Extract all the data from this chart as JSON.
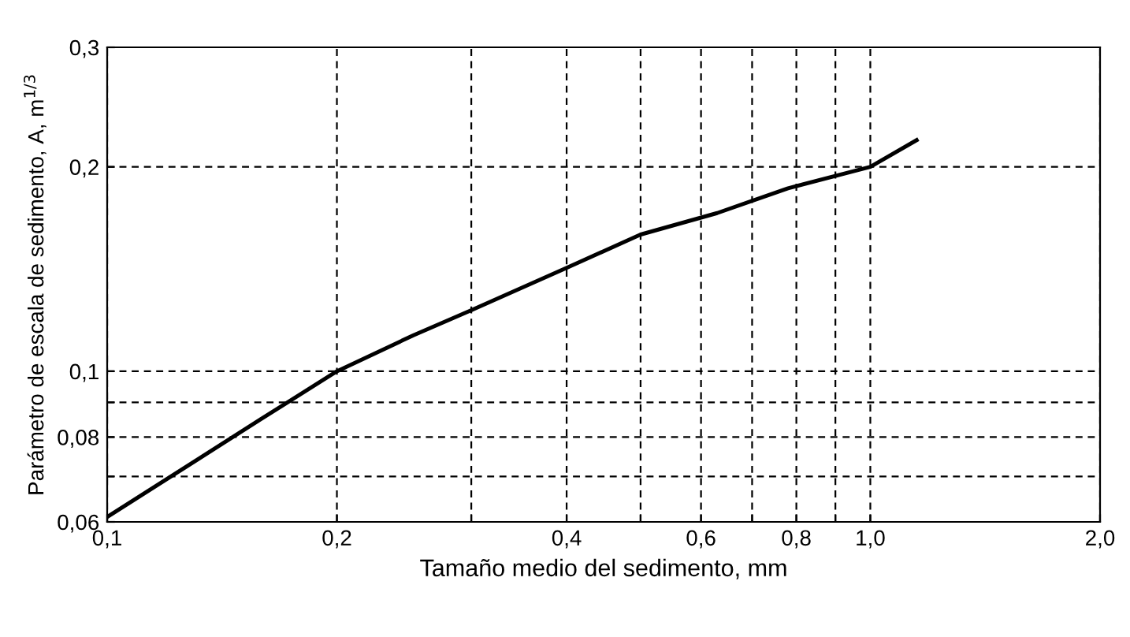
{
  "chart_data": {
    "type": "line",
    "xlabel": "Tamaño medio del sedimento, mm",
    "ylabel": "Parámetro de escala de sedimento, A, m$^{1/3}$",
    "log": "xy",
    "grid": true,
    "marker": "none",
    "line_style": "solid",
    "x": [
      0.1,
      0.159,
      0.2,
      0.252,
      0.3,
      0.4,
      0.5,
      0.63,
      0.78,
      1.0,
      1.15
    ],
    "series": [
      {
        "color": "#000000",
        "values": [
          0.061,
          0.085,
          0.1,
          0.113,
          0.123,
          0.142,
          0.159,
          0.171,
          0.186,
          0.2,
          0.219
        ]
      }
    ],
    "xlim": [
      0.1,
      2.0
    ],
    "ylim": [
      0.06,
      0.3
    ],
    "xticks": [
      {
        "value": 0.1,
        "label": "0,1"
      },
      {
        "value": 0.2,
        "label": "0,2"
      },
      {
        "value": 0.3,
        "label": null
      },
      {
        "value": 0.4,
        "label": "0,4"
      },
      {
        "value": 0.5,
        "label": null
      },
      {
        "value": 0.6,
        "label": "0,6"
      },
      {
        "value": 0.7,
        "label": null
      },
      {
        "value": 0.8,
        "label": "0,8"
      },
      {
        "value": 0.9,
        "label": null
      },
      {
        "value": 1.0,
        "label": "1,0"
      },
      {
        "value": 2.0,
        "label": "2,0"
      }
    ],
    "yticks": [
      {
        "value": 0.06,
        "label": "0,06"
      },
      {
        "value": 0.07,
        "label": null
      },
      {
        "value": 0.08,
        "label": "0,08"
      },
      {
        "value": 0.09,
        "label": null
      },
      {
        "value": 0.1,
        "label": "0,1"
      },
      {
        "value": 0.2,
        "label": "0,2"
      },
      {
        "value": 0.3,
        "label": "0,3"
      }
    ]
  }
}
